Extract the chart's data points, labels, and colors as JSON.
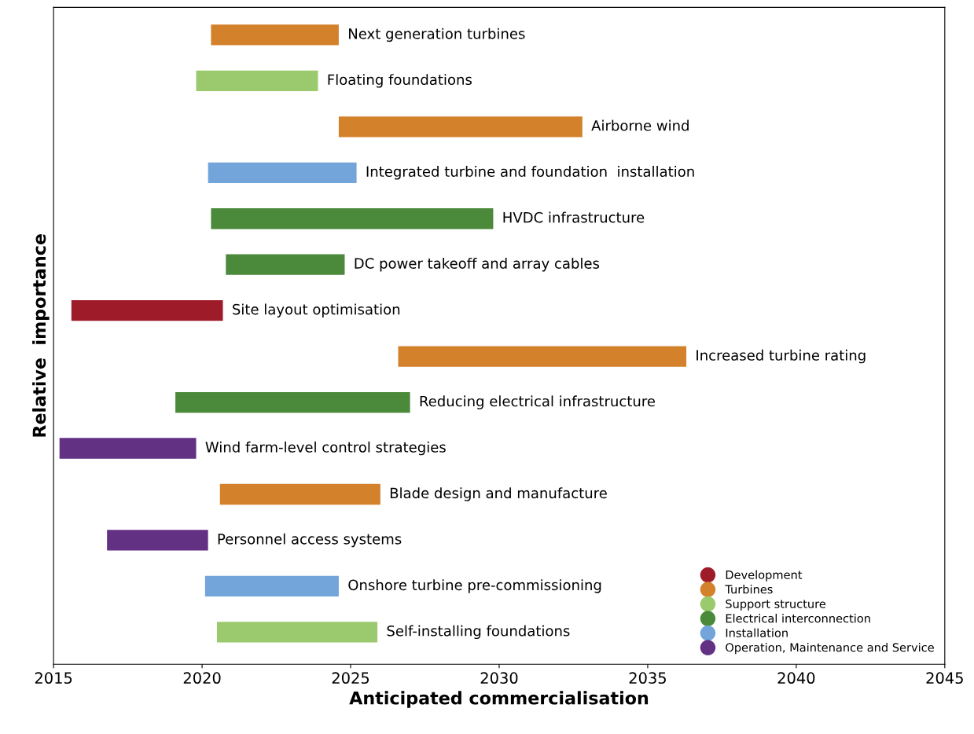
{
  "chart_data": {
    "type": "bar",
    "orientation": "horizontal",
    "xlabel": "Anticipated commercialisation",
    "ylabel": "Relative  importance",
    "categories": [
      "Next generation turbines",
      "Floating foundations",
      "Airborne wind",
      "Integrated turbine and foundation  installation",
      "HVDC infrastructure",
      "DC power takeoff and array cables",
      "Site layout optimisation",
      "Increased turbine rating",
      "Reducing electrical infrastructure",
      "Wind farm-level control strategies",
      "Blade design and manufacture",
      "Personnel access systems",
      "Onshore turbine pre-commissioning",
      "Self-installing foundations"
    ],
    "series": [
      {
        "name": "Development",
        "color": "#9e1b2a",
        "base": [
          null,
          null,
          null,
          null,
          null,
          null,
          2015.6,
          null,
          null,
          null,
          null,
          null,
          null,
          null
        ],
        "values": [
          null,
          null,
          null,
          null,
          null,
          null,
          5.1,
          null,
          null,
          null,
          null,
          null,
          null,
          null
        ]
      },
      {
        "name": "Turbines",
        "color": "#d4812b",
        "base": [
          2020.3,
          null,
          2024.6,
          null,
          null,
          null,
          null,
          2026.6,
          null,
          null,
          2020.6,
          null,
          null,
          null
        ],
        "values": [
          4.3,
          null,
          8.2,
          null,
          null,
          null,
          null,
          9.7,
          null,
          null,
          5.4,
          null,
          null,
          null
        ]
      },
      {
        "name": "Support structure",
        "color": "#9bca6e",
        "base": [
          null,
          2019.8,
          null,
          null,
          null,
          null,
          null,
          null,
          null,
          null,
          null,
          null,
          null,
          2020.5
        ],
        "values": [
          null,
          4.1,
          null,
          null,
          null,
          null,
          null,
          null,
          null,
          null,
          null,
          null,
          null,
          5.4
        ]
      },
      {
        "name": "Electrical interconnection",
        "color": "#4a8a3a",
        "base": [
          null,
          null,
          null,
          null,
          2020.3,
          2020.8,
          null,
          null,
          2019.1,
          null,
          null,
          null,
          null,
          null
        ],
        "values": [
          null,
          null,
          null,
          null,
          9.5,
          4.0,
          null,
          null,
          7.9,
          null,
          null,
          null,
          null,
          null
        ]
      },
      {
        "name": "Installation",
        "color": "#73a4da",
        "base": [
          null,
          null,
          null,
          2020.2,
          null,
          null,
          null,
          null,
          null,
          null,
          null,
          null,
          2020.1,
          null
        ],
        "values": [
          null,
          null,
          null,
          5.0,
          null,
          null,
          null,
          null,
          null,
          null,
          null,
          null,
          4.5,
          null
        ]
      },
      {
        "name": "Operation, Maintenance and Service",
        "color": "#623184",
        "base": [
          null,
          null,
          null,
          null,
          null,
          null,
          null,
          null,
          null,
          2015.2,
          null,
          2016.8,
          null,
          null
        ],
        "values": [
          null,
          null,
          null,
          null,
          null,
          null,
          null,
          null,
          null,
          4.6,
          null,
          3.4,
          null,
          null
        ]
      }
    ],
    "xlim": [
      2015,
      2045
    ],
    "xticks": [
      2015,
      2020,
      2025,
      2030,
      2035,
      2040,
      2045
    ],
    "tick_labels": "x",
    "legend": "bottom right",
    "grid": false
  }
}
